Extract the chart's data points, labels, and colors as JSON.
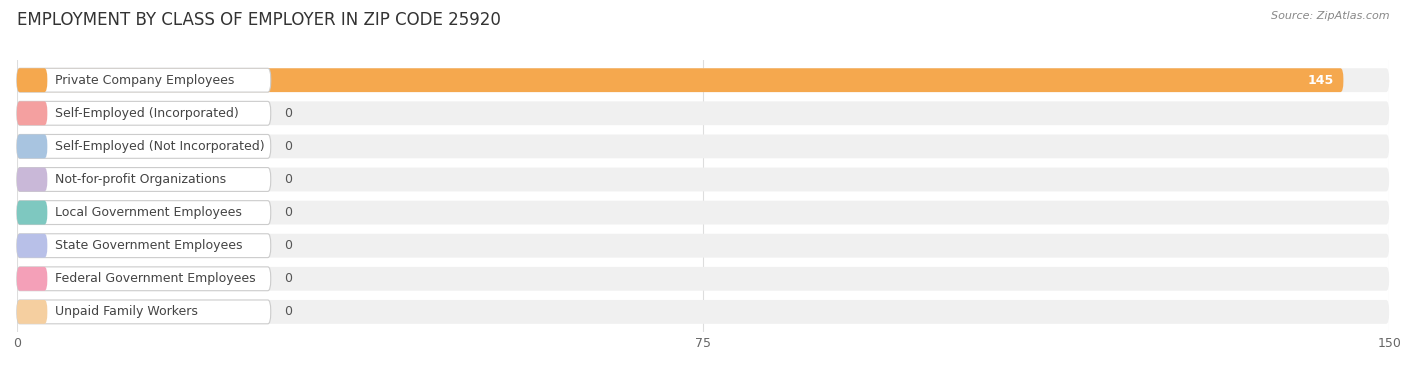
{
  "title": "EMPLOYMENT BY CLASS OF EMPLOYER IN ZIP CODE 25920",
  "source": "Source: ZipAtlas.com",
  "categories": [
    "Private Company Employees",
    "Self-Employed (Incorporated)",
    "Self-Employed (Not Incorporated)",
    "Not-for-profit Organizations",
    "Local Government Employees",
    "State Government Employees",
    "Federal Government Employees",
    "Unpaid Family Workers"
  ],
  "values": [
    145,
    0,
    0,
    0,
    0,
    0,
    0,
    0
  ],
  "bar_colors": [
    "#F5A84E",
    "#F4A0A0",
    "#A8C4E0",
    "#C9B8D8",
    "#7EC8C0",
    "#B8C0E8",
    "#F4A0B8",
    "#F5CFA0"
  ],
  "bar_bg_color": "#F0F0F0",
  "label_bg_color": "#FFFFFF",
  "label_text_color": "#444444",
  "value_color_on_bar": "#FFFFFF",
  "value_color_off_bar": "#555555",
  "xlim": [
    0,
    150
  ],
  "xticks": [
    0,
    75,
    150
  ],
  "background_color": "#FFFFFF",
  "grid_color": "#DDDDDD",
  "title_fontsize": 12,
  "label_fontsize": 9,
  "value_fontsize": 9
}
